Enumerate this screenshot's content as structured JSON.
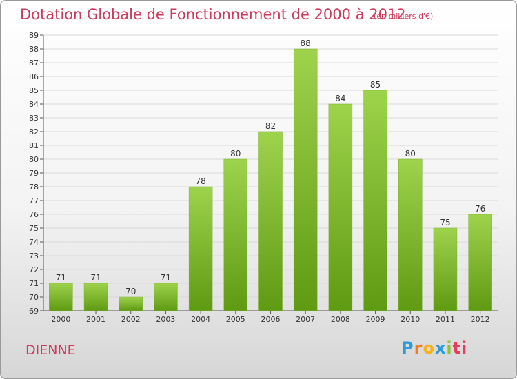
{
  "title": "Dotation Globale de Fonctionnement de 2000 à 2012",
  "subtitle": "(en milliers d'€)",
  "place": "DIENNE",
  "logo": {
    "text": "Proxiti",
    "letters": [
      "P",
      "r",
      "o",
      "x",
      "i",
      "ti"
    ]
  },
  "colors": {
    "title": "#cc3a5c",
    "bar_top": "#9ed34c",
    "bar_bottom": "#5f9a13",
    "grid": "#d9d9d9"
  },
  "chart_data": {
    "type": "bar",
    "title": "Dotation Globale de Fonctionnement de 2000 à 2012",
    "subtitle": "(en milliers d'€)",
    "categories": [
      "2000",
      "2001",
      "2002",
      "2003",
      "2004",
      "2005",
      "2006",
      "2007",
      "2008",
      "2009",
      "2010",
      "2011",
      "2012"
    ],
    "values": [
      71,
      71,
      70,
      71,
      78,
      80,
      82,
      88,
      84,
      85,
      80,
      75,
      76
    ],
    "ylim": [
      69,
      89
    ],
    "yticks": [
      69,
      70,
      71,
      72,
      73,
      74,
      75,
      76,
      77,
      78,
      79,
      80,
      81,
      82,
      83,
      84,
      85,
      86,
      87,
      88,
      89
    ],
    "xlabel": "",
    "ylabel": "",
    "grid": true,
    "legend": "none"
  }
}
